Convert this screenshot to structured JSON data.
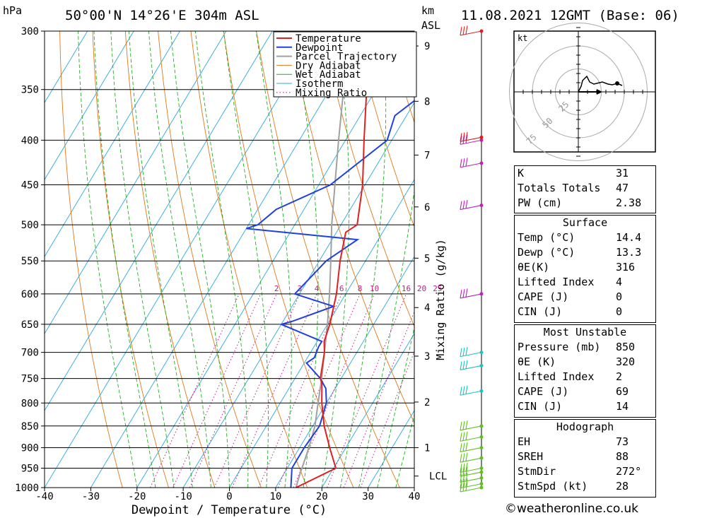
{
  "header": {
    "left_unit": "hPa",
    "location": "50°00'N  14°26'E  304m  ASL",
    "km_unit": "km",
    "asl_unit": "ASL",
    "datetime": "11.08.2021  12GMT  (Base: 06)"
  },
  "chart_data": {
    "type": "line",
    "xlabel": "Dewpoint / Temperature (°C)",
    "ylabel_left": "hPa",
    "ylabel_right": "Mixing Ratio (g/kg)",
    "xlim": [
      -40,
      40
    ],
    "ylim": [
      1000,
      300
    ],
    "x_ticks": [
      "-40",
      "-30",
      "-20",
      "-10",
      "0",
      "10",
      "20",
      "30",
      "40"
    ],
    "pressure_levels": [
      300,
      350,
      400,
      450,
      500,
      550,
      600,
      650,
      700,
      750,
      800,
      850,
      900,
      950,
      1000
    ],
    "pressure_labels": [
      "300",
      "350",
      "400",
      "450",
      "500",
      "550",
      "600",
      "650",
      "700",
      "750",
      "800",
      "850",
      "900",
      "950",
      "1000"
    ],
    "km_ticks": [
      {
        "km": "1",
        "p": 900
      },
      {
        "km": "2",
        "p": 798
      },
      {
        "km": "3",
        "p": 707
      },
      {
        "km": "4",
        "p": 622
      },
      {
        "km": "5",
        "p": 546
      },
      {
        "km": "6",
        "p": 477
      },
      {
        "km": "7",
        "p": 416
      },
      {
        "km": "8",
        "p": 361
      },
      {
        "km": "9",
        "p": 312
      }
    ],
    "lcl": {
      "label": "LCL",
      "p": 970
    },
    "mixing_ratio_labels": [
      "2",
      "3",
      "4",
      "6",
      "8",
      "10",
      "16",
      "20",
      "25"
    ],
    "legend": [
      "Temperature",
      "Dewpoint",
      "Parcel Trajectory",
      "Dry Adiabat",
      "Wet Adiabat",
      "Isotherm",
      "Mixing Ratio"
    ],
    "legend_position": "top-right",
    "series": [
      {
        "name": "Temperature",
        "color": "#e02020",
        "points": [
          [
            14.4,
            1000
          ],
          [
            20.5,
            950
          ],
          [
            16.5,
            900
          ],
          [
            12.5,
            850
          ],
          [
            9.0,
            800
          ],
          [
            6.5,
            760
          ],
          [
            5.5,
            750
          ],
          [
            3.0,
            700
          ],
          [
            1.5,
            680
          ],
          [
            0.5,
            650
          ],
          [
            -2.0,
            600
          ],
          [
            -5.5,
            550
          ],
          [
            -8.0,
            510
          ],
          [
            -6.5,
            500
          ],
          [
            -10.5,
            450
          ],
          [
            -16.0,
            400
          ],
          [
            -22.0,
            350
          ],
          [
            -28.5,
            300
          ]
        ]
      },
      {
        "name": "Dewpoint",
        "color": "#2040e0",
        "points": [
          [
            13.3,
            1000
          ],
          [
            11.0,
            950
          ],
          [
            11.0,
            900
          ],
          [
            11.5,
            850
          ],
          [
            10.0,
            800
          ],
          [
            8.0,
            770
          ],
          [
            5.5,
            750
          ],
          [
            0.5,
            720
          ],
          [
            1.5,
            710
          ],
          [
            1.0,
            690
          ],
          [
            1.0,
            680
          ],
          [
            -10.0,
            650
          ],
          [
            -8.0,
            645
          ],
          [
            -1.0,
            620
          ],
          [
            -11.0,
            600
          ],
          [
            -8.5,
            550
          ],
          [
            -4.5,
            520
          ],
          [
            -30.0,
            505
          ],
          [
            -28.0,
            500
          ],
          [
            -26.0,
            480
          ],
          [
            -17.5,
            450
          ],
          [
            -11.0,
            400
          ],
          [
            -12.5,
            375
          ],
          [
            -8.5,
            350
          ],
          [
            -7.5,
            340
          ],
          [
            -9.5,
            300
          ]
        ]
      },
      {
        "name": "Parcel Trajectory",
        "color": "#a0a0a0",
        "points": [
          [
            14.4,
            1000
          ],
          [
            13.5,
            965
          ],
          [
            12.0,
            900
          ],
          [
            10.5,
            850
          ],
          [
            8.2,
            800
          ],
          [
            5.8,
            750
          ],
          [
            3.0,
            700
          ],
          [
            0.0,
            650
          ],
          [
            -3.5,
            600
          ],
          [
            -7.5,
            550
          ],
          [
            -12.0,
            500
          ],
          [
            -16.5,
            450
          ],
          [
            -21.5,
            400
          ],
          [
            -27.0,
            350
          ],
          [
            -33.0,
            300
          ]
        ]
      }
    ],
    "wind_barb_pressures": [
      1000,
      990,
      975,
      960,
      950,
      925,
      900,
      875,
      850,
      775,
      725,
      700,
      600,
      475,
      425,
      400,
      397,
      300
    ]
  },
  "hodograph": {
    "unit": "kt",
    "ring_labels": [
      "25",
      "50",
      "75"
    ]
  },
  "indices": {
    "k_label": "K",
    "k_value": "31",
    "tt_label": "Totals Totals",
    "tt_value": "47",
    "pw_label": "PW (cm)",
    "pw_value": "2.38"
  },
  "surface": {
    "title": "Surface",
    "rows": [
      {
        "label": "Temp (°C)",
        "value": "14.4"
      },
      {
        "label": "Dewp (°C)",
        "value": "13.3"
      },
      {
        "label": "θE(K)",
        "value": "316"
      },
      {
        "label": "Lifted Index",
        "value": "4"
      },
      {
        "label": "CAPE (J)",
        "value": "0"
      },
      {
        "label": "CIN (J)",
        "value": "0"
      }
    ]
  },
  "most_unstable": {
    "title": "Most Unstable",
    "rows": [
      {
        "label": "Pressure (mb)",
        "value": "850"
      },
      {
        "label": "θE (K)",
        "value": "320"
      },
      {
        "label": "Lifted Index",
        "value": "2"
      },
      {
        "label": "CAPE (J)",
        "value": "69"
      },
      {
        "label": "CIN (J)",
        "value": "14"
      }
    ]
  },
  "hodo_params": {
    "title": "Hodograph",
    "rows": [
      {
        "label": "EH",
        "value": "73"
      },
      {
        "label": "SREH",
        "value": "88"
      },
      {
        "label": "StmDir",
        "value": "272°"
      },
      {
        "label": "StmSpd (kt)",
        "value": "28"
      }
    ]
  },
  "footer": {
    "copyright": "©weatheronline.co.uk"
  },
  "colors": {
    "temperature": "#e02020",
    "dewpoint": "#2040e0",
    "parcel": "#a0a0a0",
    "dry_adiabat": "#e07818",
    "wet_adiabat": "#20b020",
    "isotherm": "#2aa8e0",
    "mixing_ratio": "#c0208a"
  }
}
